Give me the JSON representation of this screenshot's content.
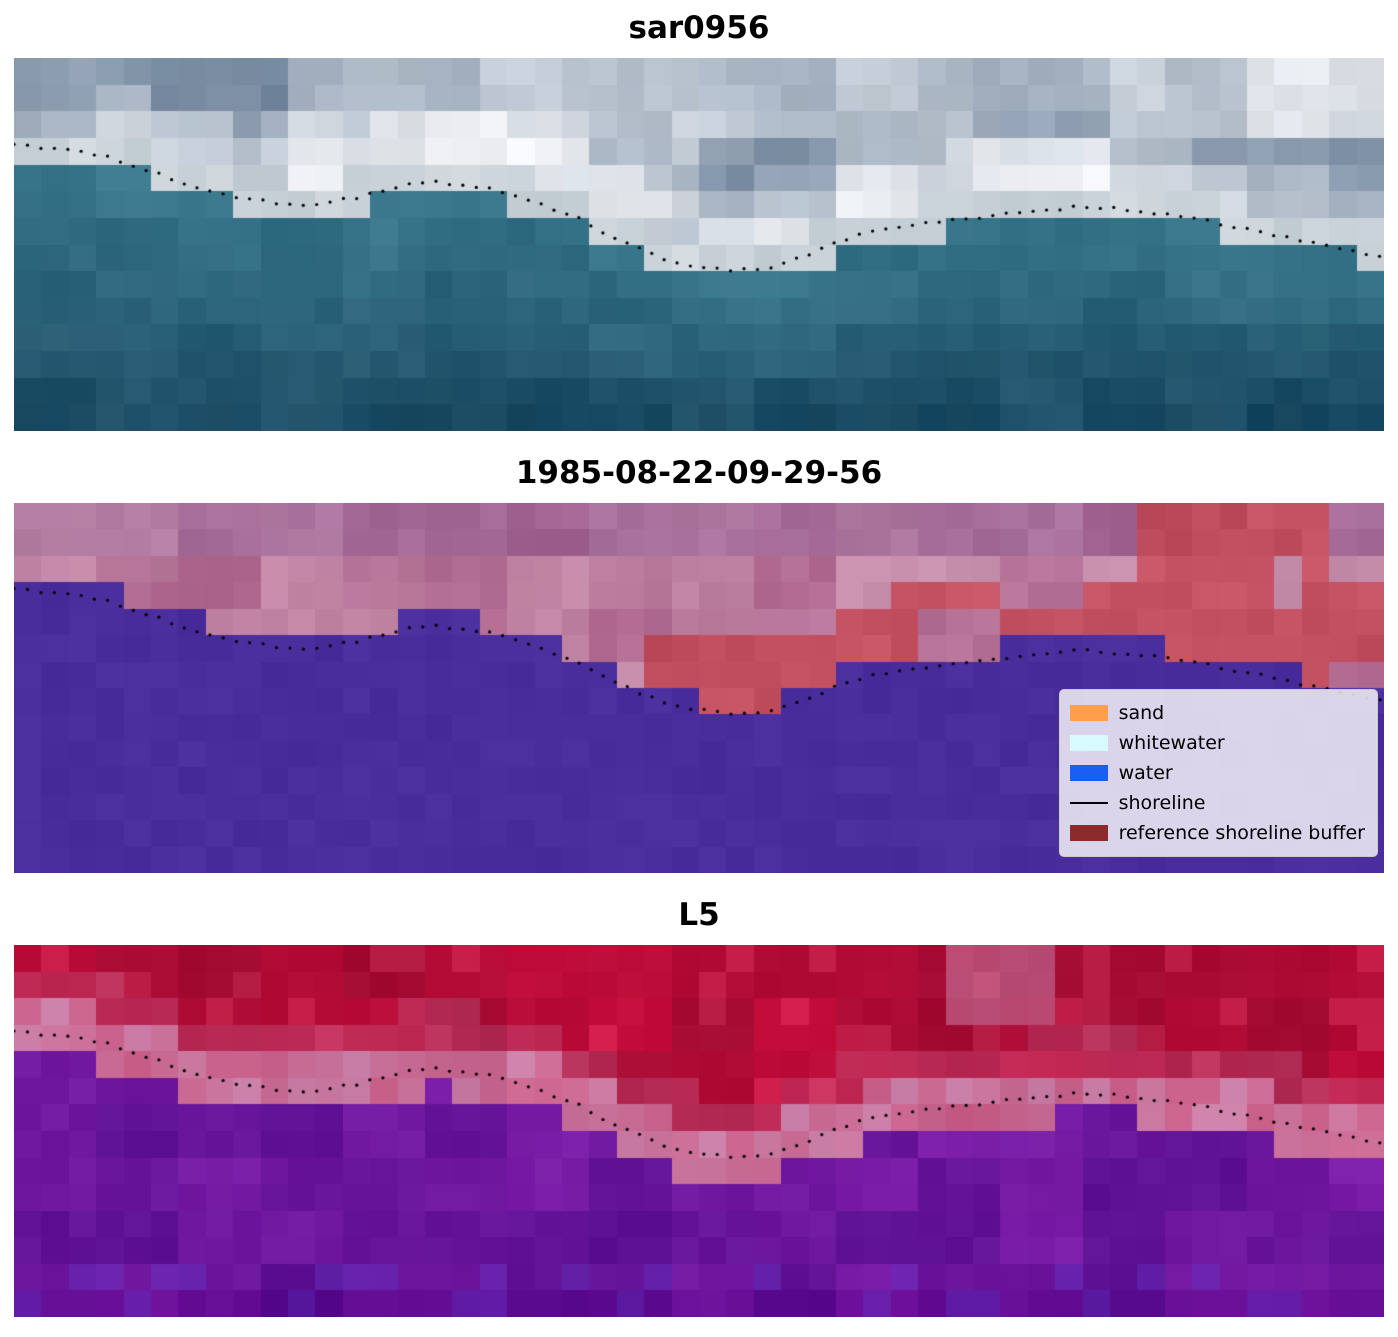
{
  "chart_data": {
    "type": "heatmap",
    "title": "",
    "panels": [
      {
        "title": "sar0956",
        "kind": "satellite image (blue/gray pixel blocks, teal water below shoreline, bright clouds above)",
        "overlay": "dotted shoreline"
      },
      {
        "title": "1985-08-22-09-29-56",
        "kind": "classified image (purple water below shoreline, mauve above, red reference-buffer patches)",
        "overlay": "dotted shoreline + legend"
      },
      {
        "title": "L5",
        "kind": "false-color image (red above shoreline, pink beach band, purple water below)",
        "overlay": "dotted shoreline"
      }
    ],
    "shoreline_normalized": [
      [
        0.0,
        0.235
      ],
      [
        0.04,
        0.245
      ],
      [
        0.07,
        0.268
      ],
      [
        0.105,
        0.31
      ],
      [
        0.14,
        0.357
      ],
      [
        0.175,
        0.382
      ],
      [
        0.21,
        0.394
      ],
      [
        0.245,
        0.378
      ],
      [
        0.28,
        0.345
      ],
      [
        0.305,
        0.332
      ],
      [
        0.34,
        0.345
      ],
      [
        0.37,
        0.375
      ],
      [
        0.405,
        0.418
      ],
      [
        0.443,
        0.49
      ],
      [
        0.478,
        0.547
      ],
      [
        0.515,
        0.568
      ],
      [
        0.553,
        0.563
      ],
      [
        0.582,
        0.525
      ],
      [
        0.612,
        0.478
      ],
      [
        0.648,
        0.452
      ],
      [
        0.69,
        0.432
      ],
      [
        0.735,
        0.413
      ],
      [
        0.78,
        0.398
      ],
      [
        0.822,
        0.41
      ],
      [
        0.867,
        0.435
      ],
      [
        0.91,
        0.465
      ],
      [
        0.955,
        0.5
      ],
      [
        1.0,
        0.532
      ]
    ],
    "legend_entries": [
      "sand",
      "whitewater",
      "water",
      "shoreline",
      "reference shoreline buffer"
    ],
    "legend_position": "lower right of middle panel"
  },
  "panels": [
    {
      "title": "sar0956",
      "render": "sar",
      "seed": 7,
      "colors": {
        "sky_dark": "#74889f",
        "sky_light": "#f1f3f6",
        "foam": "#bfcad1",
        "water_top": "#3d7f93",
        "water_deep": "#1a4a63"
      }
    },
    {
      "title": "1985-08-22-09-29-56",
      "render": "classif",
      "seed": 13,
      "colors": {
        "water_purple": "#4a2d9c",
        "mauve_a": "#b06a90",
        "mauve_b": "#c992ae",
        "top_mauve": "#8d5a92",
        "red_buffer": "#c24f60"
      }
    },
    {
      "title": "L5",
      "render": "l5",
      "seed": 21,
      "colors": {
        "red_a": "#c50d3b",
        "red_b": "#9d0a31",
        "pink": "#ca80a8",
        "purple_a": "#7b1da8",
        "purple_b": "#5c1092",
        "purple_blue": "#5529b5"
      }
    }
  ],
  "legend": {
    "items": [
      {
        "label": "sand",
        "color": "#ff9e4d",
        "type": "patch"
      },
      {
        "label": "whitewater",
        "color": "#d8fafd",
        "type": "patch"
      },
      {
        "label": "water",
        "color": "#1a5ff2",
        "type": "patch"
      },
      {
        "label": "shoreline",
        "color": "#000000",
        "type": "line"
      },
      {
        "label": "reference shoreline buffer",
        "color": "#8c2b2b",
        "type": "patch"
      }
    ]
  },
  "shoreline_dot_color": "#000000"
}
